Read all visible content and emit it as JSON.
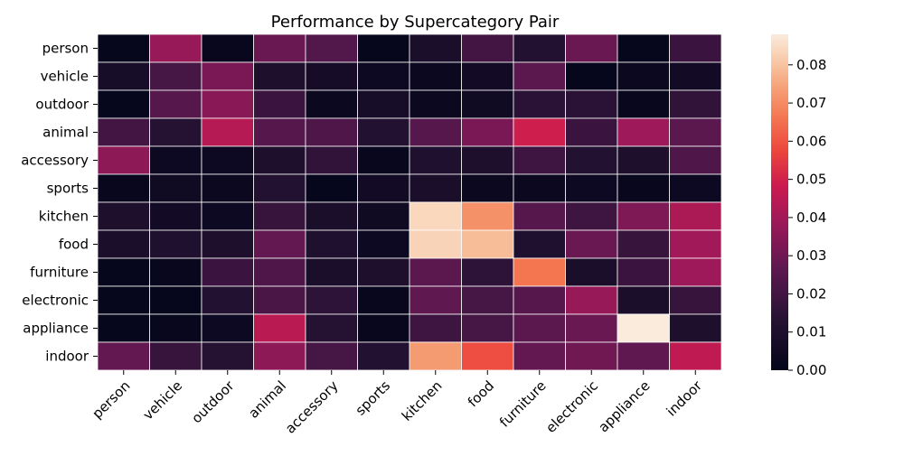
{
  "chart_data": {
    "type": "heatmap",
    "title": "Performance by Supercategory Pair",
    "xlabel": "",
    "ylabel": "",
    "rows": [
      "person",
      "vehicle",
      "outdoor",
      "animal",
      "accessory",
      "sports",
      "kitchen",
      "food",
      "furniture",
      "electronic",
      "appliance",
      "indoor"
    ],
    "columns": [
      "person",
      "vehicle",
      "outdoor",
      "animal",
      "accessory",
      "sports",
      "kitchen",
      "food",
      "furniture",
      "electronic",
      "appliance",
      "indoor"
    ],
    "values": [
      [
        0.001,
        0.038,
        0.002,
        0.029,
        0.024,
        0.001,
        0.009,
        0.02,
        0.012,
        0.029,
        0.001,
        0.018
      ],
      [
        0.008,
        0.021,
        0.032,
        0.01,
        0.007,
        0.004,
        0.003,
        0.006,
        0.026,
        0.001,
        0.003,
        0.006
      ],
      [
        0.001,
        0.025,
        0.035,
        0.018,
        0.003,
        0.008,
        0.003,
        0.005,
        0.014,
        0.014,
        0.002,
        0.016
      ],
      [
        0.02,
        0.013,
        0.044,
        0.025,
        0.023,
        0.012,
        0.025,
        0.032,
        0.049,
        0.018,
        0.039,
        0.026
      ],
      [
        0.036,
        0.004,
        0.004,
        0.01,
        0.016,
        0.002,
        0.011,
        0.01,
        0.019,
        0.012,
        0.01,
        0.023
      ],
      [
        0.002,
        0.005,
        0.003,
        0.012,
        0.001,
        0.006,
        0.009,
        0.003,
        0.003,
        0.004,
        0.002,
        0.004
      ],
      [
        0.01,
        0.006,
        0.004,
        0.017,
        0.009,
        0.005,
        0.084,
        0.071,
        0.025,
        0.019,
        0.033,
        0.042
      ],
      [
        0.009,
        0.011,
        0.01,
        0.028,
        0.011,
        0.004,
        0.083,
        0.079,
        0.011,
        0.029,
        0.017,
        0.04
      ],
      [
        0.001,
        0.002,
        0.018,
        0.023,
        0.009,
        0.01,
        0.026,
        0.015,
        0.066,
        0.009,
        0.018,
        0.039
      ],
      [
        0.001,
        0.001,
        0.012,
        0.022,
        0.015,
        0.002,
        0.027,
        0.021,
        0.025,
        0.038,
        0.009,
        0.017
      ],
      [
        0.001,
        0.002,
        0.004,
        0.045,
        0.013,
        0.002,
        0.019,
        0.021,
        0.026,
        0.029,
        0.088,
        0.01
      ],
      [
        0.028,
        0.017,
        0.013,
        0.036,
        0.021,
        0.012,
        0.073,
        0.059,
        0.028,
        0.03,
        0.027,
        0.046
      ]
    ],
    "colorbar": {
      "min": 0.0,
      "max": 0.088,
      "ticks": [
        "0.00",
        "0.01",
        "0.02",
        "0.03",
        "0.04",
        "0.05",
        "0.06",
        "0.07",
        "0.08"
      ]
    },
    "colormap": "rocket",
    "cell_border_color": "#ffffff",
    "grid": false
  }
}
